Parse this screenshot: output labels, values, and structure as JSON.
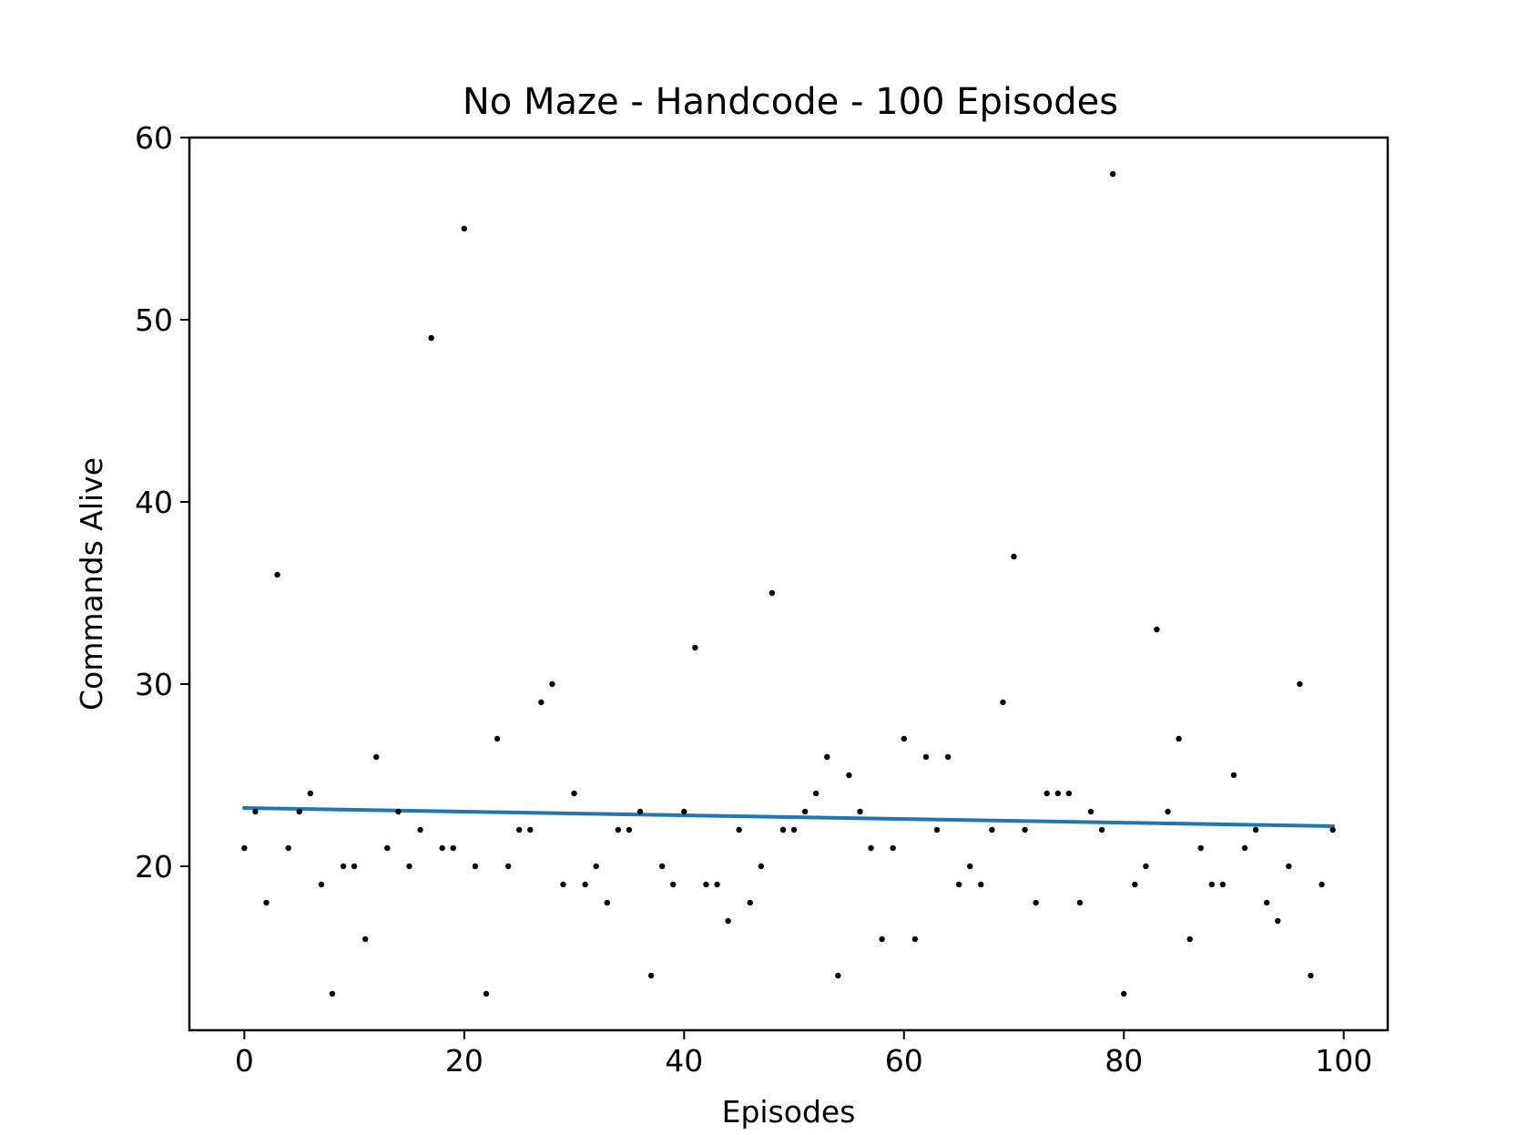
{
  "chart_data": {
    "type": "scatter",
    "title": "No Maze - Handcode - 100 Episodes",
    "xlabel": "Episodes",
    "ylabel": "Commands Alive",
    "xlim": [
      -5,
      104
    ],
    "ylim": [
      11,
      60
    ],
    "xticks": [
      0,
      20,
      40,
      60,
      80,
      100
    ],
    "yticks": [
      20,
      30,
      40,
      50,
      60
    ],
    "grid": false,
    "point_color": "#000000",
    "trend_color": "#1f77b4",
    "points": [
      21,
      23,
      18,
      36,
      21,
      23,
      24,
      19,
      13,
      20,
      20,
      16,
      26,
      21,
      23,
      20,
      22,
      49,
      21,
      21,
      55,
      20,
      13,
      27,
      20,
      22,
      22,
      29,
      30,
      19,
      24,
      19,
      20,
      18,
      22,
      22,
      23,
      14,
      20,
      19,
      23,
      32,
      19,
      19,
      17,
      22,
      18,
      20,
      35,
      22,
      22,
      23,
      24,
      26,
      14,
      25,
      23,
      21,
      16,
      21,
      27,
      16,
      26,
      22,
      26,
      19,
      20,
      19,
      22,
      29,
      37,
      22,
      18,
      24,
      24,
      24,
      18,
      23,
      22,
      58,
      13,
      19,
      20,
      33,
      23,
      27,
      16,
      21,
      19,
      19,
      25,
      21,
      22,
      18,
      17,
      20,
      30,
      14,
      19,
      22
    ],
    "trend_line": {
      "x": [
        0,
        99
      ],
      "y": [
        23.2,
        22.2
      ]
    }
  }
}
